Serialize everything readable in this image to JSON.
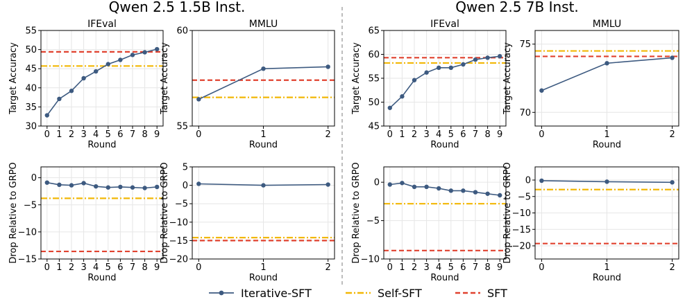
{
  "figure": {
    "group_titles": [
      "Qwen 2.5 1.5B Inst.",
      "Qwen 2.5 7B Inst."
    ],
    "legend": [
      {
        "label": "Iterative-SFT",
        "style": "solid-marker",
        "color": "#3d5a80"
      },
      {
        "label": "Self-SFT",
        "style": "dash-dot",
        "color": "#f2b705"
      },
      {
        "label": "SFT",
        "style": "dashed",
        "color": "#e0412e"
      }
    ],
    "colors": {
      "iterative": "#3d5a80",
      "self_sft": "#f2b705",
      "sft": "#e0412e",
      "grid": "#e6e6e6",
      "separator": "#999999"
    }
  },
  "chart_data": [
    {
      "type": "line",
      "group": "Qwen 2.5 1.5B Inst.",
      "title": "IFEval",
      "xlabel": "Round",
      "ylabel": "Target Accuracy",
      "x": [
        0,
        1,
        2,
        3,
        4,
        5,
        6,
        7,
        8,
        9
      ],
      "series": [
        {
          "name": "Iterative-SFT",
          "values": [
            32.8,
            37.1,
            39.2,
            42.5,
            44.3,
            46.2,
            47.3,
            48.6,
            49.3,
            50.1
          ]
        }
      ],
      "hlines": {
        "Self-SFT": 45.7,
        "SFT": 49.4
      },
      "xlim": [
        -0.5,
        9.5
      ],
      "ylim": [
        30,
        55
      ],
      "yticks": [
        30,
        35,
        40,
        45,
        50,
        55
      ],
      "grid": true
    },
    {
      "type": "line",
      "group": "Qwen 2.5 1.5B Inst.",
      "title": "MMLU",
      "xlabel": "Round",
      "ylabel": "Target Accuracy",
      "x": [
        0,
        1,
        2
      ],
      "series": [
        {
          "name": "Iterative-SFT",
          "values": [
            56.4,
            58.0,
            58.1
          ]
        }
      ],
      "hlines": {
        "Self-SFT": 56.5,
        "SFT": 57.4
      },
      "xlim": [
        -0.1,
        2.1
      ],
      "ylim": [
        55,
        60
      ],
      "yticks": [
        55,
        60
      ],
      "grid": true
    },
    {
      "type": "line",
      "group": "Qwen 2.5 7B Inst.",
      "title": "IFEval",
      "xlabel": "Round",
      "ylabel": "Target Accuracy",
      "x": [
        0,
        1,
        2,
        3,
        4,
        5,
        6,
        7,
        8,
        9
      ],
      "series": [
        {
          "name": "Iterative-SFT",
          "values": [
            48.8,
            51.2,
            54.6,
            56.2,
            57.2,
            57.2,
            57.9,
            58.9,
            59.3,
            59.6
          ]
        }
      ],
      "hlines": {
        "Self-SFT": 58.2,
        "SFT": 59.3
      },
      "xlim": [
        -0.5,
        9.5
      ],
      "ylim": [
        45,
        65
      ],
      "yticks": [
        45,
        50,
        55,
        60,
        65
      ],
      "grid": true
    },
    {
      "type": "line",
      "group": "Qwen 2.5 7B Inst.",
      "title": "MMLU",
      "xlabel": "Round",
      "ylabel": "Target Accuracy",
      "x": [
        0,
        1,
        2
      ],
      "series": [
        {
          "name": "Iterative-SFT",
          "values": [
            71.6,
            73.6,
            74.0
          ]
        }
      ],
      "hlines": {
        "Self-SFT": 74.5,
        "SFT": 74.1
      },
      "xlim": [
        -0.1,
        2.1
      ],
      "ylim": [
        69,
        76
      ],
      "yticks": [
        70,
        75
      ],
      "grid": true
    },
    {
      "type": "line",
      "group": "Qwen 2.5 1.5B Inst.",
      "title": "",
      "xlabel": "Round",
      "ylabel": "Drop Relative to GRPO",
      "x": [
        0,
        1,
        2,
        3,
        4,
        5,
        6,
        7,
        8,
        9
      ],
      "series": [
        {
          "name": "Iterative-SFT",
          "values": [
            -0.9,
            -1.3,
            -1.4,
            -1.0,
            -1.6,
            -1.8,
            -1.7,
            -1.8,
            -1.9,
            -1.7
          ]
        }
      ],
      "hlines": {
        "Self-SFT": -3.8,
        "SFT": -13.6
      },
      "xlim": [
        -0.5,
        9.5
      ],
      "ylim": [
        -15,
        2
      ],
      "yticks": [
        -15,
        -10,
        -5,
        0
      ],
      "grid": true
    },
    {
      "type": "line",
      "group": "Qwen 2.5 1.5B Inst.",
      "title": "",
      "xlabel": "Round",
      "ylabel": "Drop Relative to GRPO",
      "x": [
        0,
        1,
        2
      ],
      "series": [
        {
          "name": "Iterative-SFT",
          "values": [
            0.4,
            0.0,
            0.2
          ]
        }
      ],
      "hlines": {
        "Self-SFT": -14.2,
        "SFT": -15.0
      },
      "xlim": [
        -0.1,
        2.1
      ],
      "ylim": [
        -20,
        5
      ],
      "yticks": [
        -20,
        -15,
        -10,
        -5,
        0,
        5
      ],
      "grid": true
    },
    {
      "type": "line",
      "group": "Qwen 2.5 7B Inst.",
      "title": "",
      "xlabel": "Round",
      "ylabel": "Drop Relative to GRPO",
      "x": [
        0,
        1,
        2,
        3,
        4,
        5,
        6,
        7,
        8,
        9
      ],
      "series": [
        {
          "name": "Iterative-SFT",
          "values": [
            -0.3,
            -0.1,
            -0.6,
            -0.6,
            -0.8,
            -1.1,
            -1.1,
            -1.3,
            -1.5,
            -1.7
          ]
        }
      ],
      "hlines": {
        "Self-SFT": -2.8,
        "SFT": -8.9
      },
      "xlim": [
        -0.5,
        9.5
      ],
      "ylim": [
        -10,
        2
      ],
      "yticks": [
        -10,
        -5,
        0
      ],
      "grid": true
    },
    {
      "type": "line",
      "group": "Qwen 2.5 7B Inst.",
      "title": "",
      "xlabel": "Round",
      "ylabel": "Drop Relative to GRPO",
      "x": [
        0,
        1,
        2
      ],
      "series": [
        {
          "name": "Iterative-SFT",
          "values": [
            -0.2,
            -0.5,
            -0.7
          ]
        }
      ],
      "hlines": {
        "Self-SFT": -2.9,
        "SFT": -19.3
      },
      "xlim": [
        -0.1,
        2.1
      ],
      "ylim": [
        -24,
        4
      ],
      "yticks": [
        -20,
        -15,
        -10,
        -5,
        0
      ],
      "grid": true
    }
  ]
}
